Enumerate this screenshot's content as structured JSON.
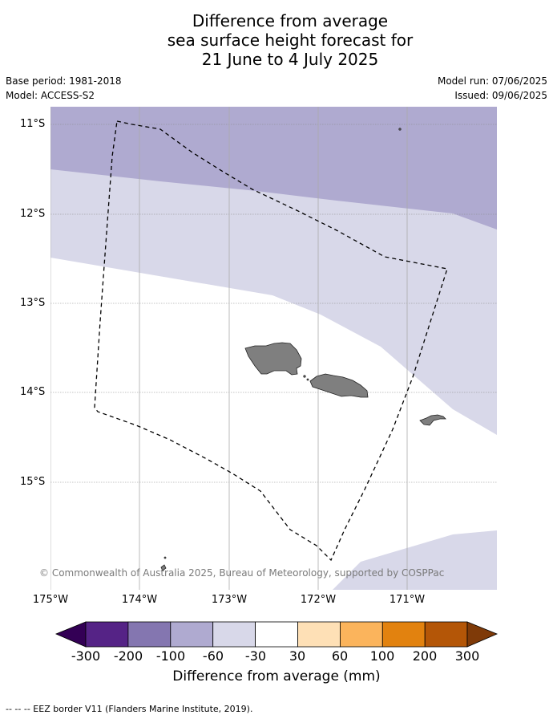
{
  "title": {
    "line1": "Difference from average",
    "line2": "sea surface height forecast for",
    "line3": "21 June to 4 July 2025"
  },
  "meta": {
    "base_period": "Base period: 1981-2018",
    "model": "Model: ACCESS-S2",
    "model_run": "Model run: 07/06/2025",
    "issued": "Issued: 09/06/2025"
  },
  "map": {
    "lat_labels": [
      "11°S",
      "12°S",
      "13°S",
      "14°S",
      "15°S"
    ],
    "lon_labels": [
      "175°W",
      "174°W",
      "173°W",
      "172°W",
      "171°W"
    ],
    "copyright": "© Commonwealth of Australia 2025, Bureau of Meteorology, supported by COSPPac",
    "colors": {
      "band_-200_-100": "#afaad0",
      "band_-100_-60": "#d8d8e9",
      "band_-30_30": "#ffffff",
      "land": "#7f7f7f",
      "grid": "#888888",
      "eez_border": "#000000"
    }
  },
  "colorbar": {
    "label": "Difference from average (mm)",
    "ticks": [
      "-300",
      "-200",
      "-100",
      "-60",
      "-30",
      "30",
      "60",
      "100",
      "200",
      "300"
    ],
    "colors": [
      "#552386",
      "#8476b0",
      "#afaad0",
      "#d8d8e9",
      "#ffffff",
      "#fee0b6",
      "#fbb45c",
      "#e2820f",
      "#b45607"
    ],
    "extend_low_color": "#330055",
    "extend_high_color": "#7f3a08"
  },
  "legend": {
    "eez_note": "--  --  -- EEZ border V11 (Flanders Marine Institute, 2019)."
  }
}
